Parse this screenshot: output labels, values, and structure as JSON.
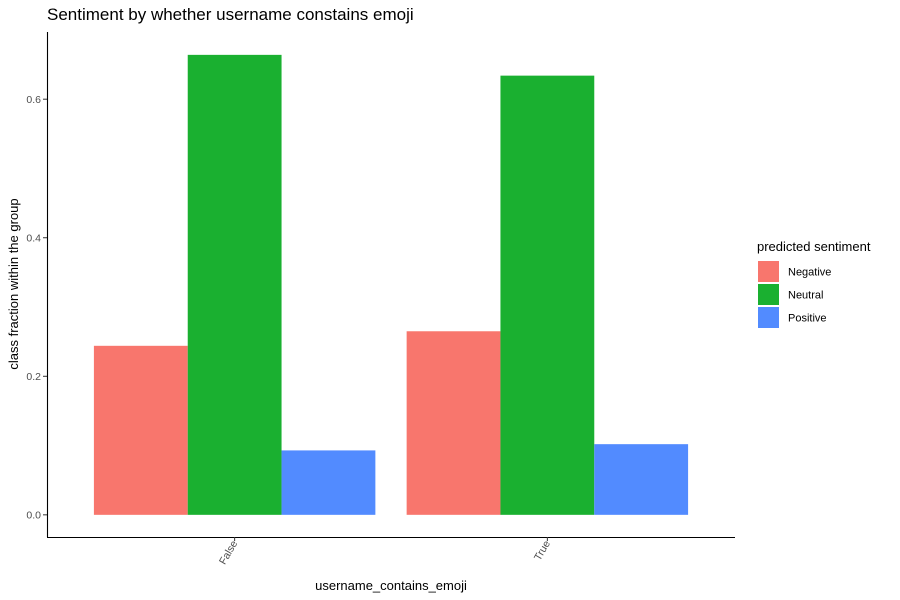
{
  "chart_data": {
    "type": "bar",
    "title": "Sentiment by whether username constains emoji",
    "xlabel": "username_contains_emoji",
    "ylabel": "class fraction within the group",
    "categories": [
      "False",
      "True"
    ],
    "series": [
      {
        "name": "Negative",
        "color": "#F8766D",
        "values": [
          0.244,
          0.265
        ]
      },
      {
        "name": "Neutral",
        "color": "#1AB030",
        "values": [
          0.664,
          0.634
        ]
      },
      {
        "name": "Positive",
        "color": "#528BFF",
        "values": [
          0.093,
          0.102
        ]
      }
    ],
    "yticks": [
      0.0,
      0.2,
      0.4,
      0.6
    ],
    "ytick_labels": [
      "0.0",
      "0.2",
      "0.4",
      "0.6"
    ],
    "ylim": [
      -0.032,
      0.697
    ],
    "grid": false,
    "legend": {
      "title": "predicted sentiment",
      "position": "right"
    }
  }
}
